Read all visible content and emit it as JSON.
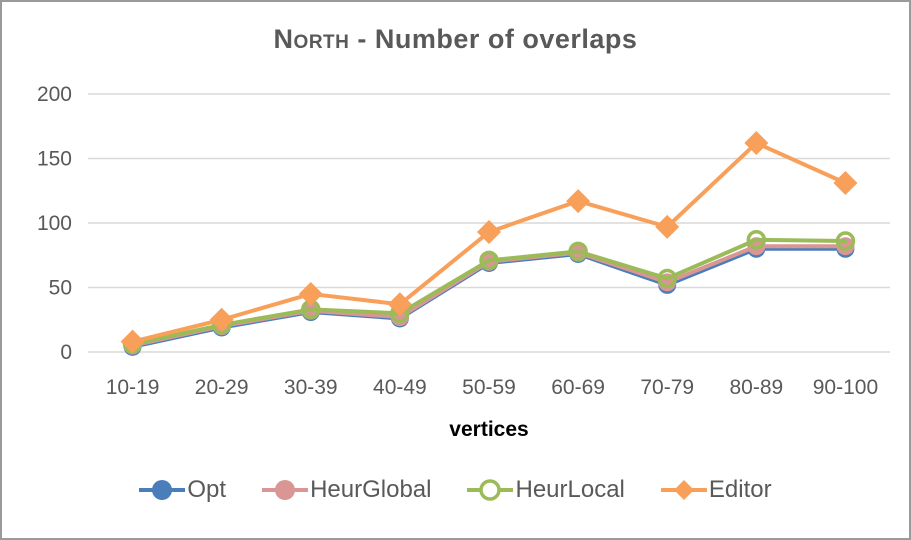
{
  "window": {
    "background": "#FFFFFF",
    "border_color": "#9A9A9A"
  },
  "chart_data": {
    "type": "line",
    "title": {
      "lead": "North",
      "rest": " - Number of overlaps"
    },
    "title_full": "North - Number of overlaps",
    "xlabel": "vertices",
    "ylabel": "",
    "ylim": [
      0,
      200
    ],
    "yticks": [
      0,
      50,
      100,
      150,
      200
    ],
    "grid": true,
    "legend_position": "bottom",
    "categories": [
      "10-19",
      "20-29",
      "30-39",
      "40-49",
      "50-59",
      "60-69",
      "70-79",
      "80-89",
      "90-100"
    ],
    "series": [
      {
        "name": "Opt",
        "color": "#4A7EBB",
        "marker": "circle",
        "values": [
          4,
          19,
          31,
          26,
          69,
          76,
          52,
          80,
          80
        ]
      },
      {
        "name": "HeurGlobal",
        "color": "#D99694",
        "marker": "circle",
        "values": [
          5,
          20,
          32,
          27,
          70,
          77,
          54,
          82,
          82
        ]
      },
      {
        "name": "HeurLocal",
        "color": "#9BBB59",
        "marker": "ring",
        "values": [
          6,
          21,
          33,
          30,
          71,
          78,
          57,
          87,
          86
        ]
      },
      {
        "name": "Editor",
        "color": "#F8A05A",
        "marker": "diamond",
        "values": [
          8,
          25,
          45,
          37,
          93,
          117,
          97,
          162,
          131
        ]
      }
    ],
    "style": {
      "gridline_color": "#D9D9D9",
      "tick_label_color": "#595959",
      "title_color": "#595959",
      "legend_text_color": "#595959"
    }
  }
}
